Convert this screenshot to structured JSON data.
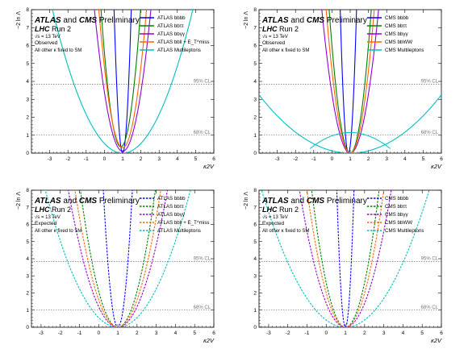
{
  "chart_data": [
    {
      "type": "line",
      "experiment": "ATLAS",
      "ylabel": "−2 ln Λ",
      "xlabel": "κ2V",
      "xlim": [
        -4,
        6
      ],
      "ylim": [
        0,
        8
      ],
      "xticks": [
        -3,
        -2,
        -1,
        0,
        1,
        2,
        3,
        4,
        5,
        6
      ],
      "yticks": [
        0,
        1,
        2,
        3,
        4,
        5,
        6,
        7,
        8
      ],
      "text": {
        "exp1": "ATLAS",
        "and": "and",
        "exp2": "CMS",
        "prelim": "Preliminary",
        "lhc": "LHC",
        "run": "Run 2",
        "energy": "√s = 13 TeV",
        "mode": "Observed",
        "note": "All other κ fixed to SM"
      },
      "ref_lines": [
        {
          "y": 3.84,
          "label": "95% CL"
        },
        {
          "y": 1.0,
          "label": "68% CL"
        }
      ],
      "legend_style": "solid",
      "series": [
        {
          "name": "ATLAS bbbb",
          "color": "#0000ff",
          "min": 1.0,
          "a": 36.0,
          "b": 0.0,
          "offset": 0.0
        },
        {
          "name": "ATLAS bbττ",
          "color": "#008000",
          "min": 0.9,
          "a": 6.5,
          "b": 0.0,
          "offset": 0.35
        },
        {
          "name": "ATLAS bbγγ",
          "color": "#9400d3",
          "min": 1.0,
          "a": 3.3,
          "b": 0.0,
          "offset": 0.1
        },
        {
          "name": "ATLAS bbll + E_T^miss",
          "color": "#ff6600",
          "min": 1.0,
          "a": 4.5,
          "b": 0.0,
          "offset": 0.3
        },
        {
          "name": "ATLAS Multileptons",
          "color": "#00bfbf",
          "min": 1.0,
          "a": 0.54,
          "b": 0.0,
          "offset": 0.0
        }
      ]
    },
    {
      "type": "line",
      "experiment": "CMS",
      "ylabel": "−2 ln Λ",
      "xlabel": "κ2V",
      "xlim": [
        -4,
        6
      ],
      "ylim": [
        0,
        8
      ],
      "xticks": [
        -3,
        -2,
        -1,
        0,
        1,
        2,
        3,
        4,
        5,
        6
      ],
      "yticks": [
        0,
        1,
        2,
        3,
        4,
        5,
        6,
        7,
        8
      ],
      "text": {
        "exp1": "ATLAS",
        "and": "and",
        "exp2": "CMS",
        "prelim": "Preliminary",
        "lhc": "LHC",
        "run": "Run 2",
        "energy": "√s = 13 TeV",
        "mode": "Observed",
        "note": "All other κ fixed to SM"
      },
      "ref_lines": [
        {
          "y": 3.84,
          "label": "95% CL"
        },
        {
          "y": 1.0,
          "label": "68% CL"
        }
      ],
      "legend_style": "solid",
      "series": [
        {
          "name": "CMS bbbb",
          "color": "#0000ff",
          "min": 0.9,
          "a": 40.0,
          "b": 0.0,
          "offset": 0.0
        },
        {
          "name": "CMS bbττ",
          "color": "#008000",
          "min": 1.0,
          "a": 6.0,
          "b": 0.0,
          "offset": 0.0
        },
        {
          "name": "CMS bbγγ",
          "color": "#9400d3",
          "min": 1.0,
          "a": 3.3,
          "b": 0.0,
          "offset": 0.0
        },
        {
          "name": "CMS bbWW",
          "color": "#ff6600",
          "min": 1.0,
          "a": 4.6,
          "b": 0.0,
          "offset": 0.0
        },
        {
          "name": "CMS Multileptons",
          "color": "#00bfbf",
          "min": 1.0,
          "a": 0.13,
          "b": 2.2,
          "offset": 0.0
        }
      ]
    },
    {
      "type": "line",
      "experiment": "ATLAS",
      "ylabel": "−2 ln Λ",
      "xlabel": "κ2V",
      "xlim": [
        -3.5,
        6
      ],
      "ylim": [
        0,
        8
      ],
      "xticks": [
        -3,
        -2,
        -1,
        0,
        1,
        2,
        3,
        4,
        5,
        6
      ],
      "yticks": [
        0,
        1,
        2,
        3,
        4,
        5,
        6,
        7,
        8
      ],
      "text": {
        "exp1": "ATLAS",
        "and": "and",
        "exp2": "CMS",
        "prelim": "Preliminary",
        "lhc": "LHC",
        "run": "Run 2",
        "energy": "√s = 13 TeV",
        "mode": "Expected",
        "note": "All other κ fixed to SM"
      },
      "ref_lines": [
        {
          "y": 3.84,
          "label": "95% CL"
        },
        {
          "y": 1.0,
          "label": "68% CL"
        }
      ],
      "legend_style": "dashed",
      "series": [
        {
          "name": "ATLAS bbbb",
          "color": "#0000ff",
          "min": 1.0,
          "a": 14.0,
          "b": 0.0,
          "offset": 0.0
        },
        {
          "name": "ATLAS bbττ",
          "color": "#008000",
          "min": 1.0,
          "a": 2.1,
          "b": 0.0,
          "offset": 0.0
        },
        {
          "name": "ATLAS bbγγ",
          "color": "#9400d3",
          "min": 1.0,
          "a": 1.2,
          "b": 0.0,
          "offset": 0.0
        },
        {
          "name": "ATLAS bbll + E_T^miss",
          "color": "#ff6600",
          "min": 1.0,
          "a": 1.6,
          "b": 0.0,
          "offset": 0.0
        },
        {
          "name": "ATLAS Multileptons",
          "color": "#00bfbf",
          "min": 1.0,
          "a": 0.56,
          "b": 0.0,
          "offset": 0.0
        }
      ]
    },
    {
      "type": "line",
      "experiment": "CMS",
      "ylabel": "−2 ln Λ",
      "xlabel": "κ2V",
      "xlim": [
        -3.5,
        6
      ],
      "ylim": [
        0,
        8
      ],
      "xticks": [
        -3,
        -2,
        -1,
        0,
        1,
        2,
        3,
        4,
        5,
        6
      ],
      "yticks": [
        0,
        1,
        2,
        3,
        4,
        5,
        6,
        7,
        8
      ],
      "text": {
        "exp1": "ATLAS",
        "and": "and",
        "exp2": "CMS",
        "prelim": "Preliminary",
        "lhc": "LHC",
        "run": "Run 2",
        "energy": "√s = 13 TeV",
        "mode": "Expected",
        "note": "All other κ fixed to SM"
      },
      "ref_lines": [
        {
          "y": 3.84,
          "label": "95% CL"
        },
        {
          "y": 1.0,
          "label": "68% CL"
        }
      ],
      "legend_style": "dashed",
      "series": [
        {
          "name": "CMS bbbb",
          "color": "#0000ff",
          "min": 1.0,
          "a": 40.0,
          "b": 0.0,
          "offset": 0.0
        },
        {
          "name": "CMS bbττ",
          "color": "#008000",
          "min": 1.0,
          "a": 2.6,
          "b": 0.0,
          "offset": 0.0
        },
        {
          "name": "CMS bbγγ",
          "color": "#9400d3",
          "min": 1.0,
          "a": 1.4,
          "b": 0.0,
          "offset": 0.0
        },
        {
          "name": "CMS bbWW",
          "color": "#ff6600",
          "min": 1.0,
          "a": 2.0,
          "b": 0.0,
          "offset": 0.0
        },
        {
          "name": "CMS Multileptons",
          "color": "#00bfbf",
          "min": 1.0,
          "a": 0.42,
          "b": 0.0,
          "offset": 0.0
        }
      ]
    }
  ]
}
